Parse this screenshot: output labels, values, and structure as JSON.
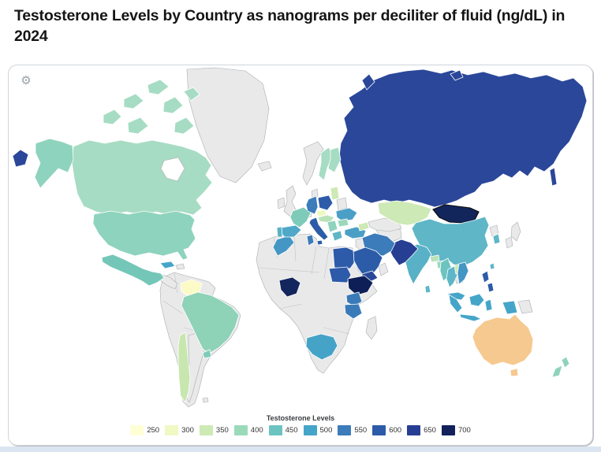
{
  "card": {
    "icons": {
      "settings_glyph": "⚙"
    }
  },
  "footer_strip_color": "#dbe5f1",
  "chart_data": {
    "type": "choropleth",
    "title": "Testosterone Levels by Country as nanograms per deciliter of fluid (ng/dL) in 2024",
    "unit": "ng/dL",
    "legend": {
      "title": "Testosterone Levels",
      "bins": [
        {
          "label": "250",
          "color": "#ffffd6"
        },
        {
          "label": "300",
          "color": "#f0f8c4"
        },
        {
          "label": "350",
          "color": "#cde9b5"
        },
        {
          "label": "400",
          "color": "#9bdab9"
        },
        {
          "label": "450",
          "color": "#6cc4c1"
        },
        {
          "label": "500",
          "color": "#45a5c9"
        },
        {
          "label": "550",
          "color": "#3c7cba"
        },
        {
          "label": "600",
          "color": "#2d5ba9"
        },
        {
          "label": "650",
          "color": "#273f93"
        },
        {
          "label": "700",
          "color": "#12205c"
        }
      ]
    },
    "ocean_color": "#ffffff",
    "no_data_color": "#e9e9e9",
    "highlighted_country": "Mongolia",
    "anomalies": [
      "Australia rendered in orange (#f5c98f), a color outside the legend scale"
    ],
    "countries": [
      {
        "name": "Canada",
        "value": 400,
        "color": "#a6dcc3"
      },
      {
        "name": "United States",
        "value": 400,
        "color": "#8ed3bd"
      },
      {
        "name": "Mexico",
        "value": 450,
        "color": "#74c7b8"
      },
      {
        "name": "Cuba",
        "value": 500,
        "color": "#45a5c9"
      },
      {
        "name": "Venezuela",
        "value": 250,
        "color": "#fcfac6"
      },
      {
        "name": "Brazil",
        "value": 400,
        "color": "#8ed2b8"
      },
      {
        "name": "Uruguay",
        "value": 400,
        "color": "#7fcbb9"
      },
      {
        "name": "Chile",
        "value": 350,
        "color": "#c7e7ae"
      },
      {
        "name": "Sweden",
        "value": 400,
        "color": "#a6dcc3"
      },
      {
        "name": "Finland",
        "value": 400,
        "color": "#a6dcc3"
      },
      {
        "name": "Baltic states",
        "value": 350,
        "color": "#cde9b5"
      },
      {
        "name": "France",
        "value": 400,
        "color": "#7ecbb9"
      },
      {
        "name": "Spain",
        "value": 450,
        "color": "#4fa8c8"
      },
      {
        "name": "Portugal",
        "value": 450,
        "color": "#58b1c6"
      },
      {
        "name": "Germany",
        "value": 550,
        "color": "#3c7cba"
      },
      {
        "name": "Poland",
        "value": 600,
        "color": "#2d5ba9"
      },
      {
        "name": "Czechia",
        "value": 300,
        "color": "#eff8c2"
      },
      {
        "name": "Austria & Hungary",
        "value": 350,
        "color": "#b9e2b8"
      },
      {
        "name": "Italy",
        "value": 600,
        "color": "#2c5ca8"
      },
      {
        "name": "Ukraine",
        "value": 500,
        "color": "#4b9fc6"
      },
      {
        "name": "Romania",
        "value": 400,
        "color": "#9bd8ba"
      },
      {
        "name": "Serbia",
        "value": 400,
        "color": "#8fd3bd"
      },
      {
        "name": "Greece",
        "value": 450,
        "color": "#5fb6c7"
      },
      {
        "name": "Caucasus",
        "value": 350,
        "color": "#cde9b5"
      },
      {
        "name": "Turkey",
        "value": 500,
        "color": "#4b9fc6"
      },
      {
        "name": "Russia",
        "value": 650,
        "color": "#2b4799"
      },
      {
        "name": "Kazakhstan",
        "value": 350,
        "color": "#cde9b5"
      },
      {
        "name": "Mongolia",
        "value": 700,
        "color": "#13265c"
      },
      {
        "name": "China",
        "value": 450,
        "color": "#5fb6c7"
      },
      {
        "name": "South Korea",
        "value": 450,
        "color": "#5fb6c7"
      },
      {
        "name": "Taiwan",
        "value": 450,
        "color": "#5fb6c7"
      },
      {
        "name": "India",
        "value": 450,
        "color": "#58b1c6"
      },
      {
        "name": "Sri Lanka",
        "value": 450,
        "color": "#5fb6c7"
      },
      {
        "name": "Nepal",
        "value": 350,
        "color": "#b9e2b8"
      },
      {
        "name": "Bangladesh",
        "value": 400,
        "color": "#9bd8ba"
      },
      {
        "name": "Pakistan",
        "value": 650,
        "color": "#273f93"
      },
      {
        "name": "Iran",
        "value": 550,
        "color": "#3c7cba"
      },
      {
        "name": "Saudi Arabia",
        "value": 600,
        "color": "#2c5ca8"
      },
      {
        "name": "Yemen",
        "value": 650,
        "color": "#2a4899"
      },
      {
        "name": "Morocco",
        "value": 500,
        "color": "#4496c4"
      },
      {
        "name": "Tunisia",
        "value": 550,
        "color": "#3c7cba"
      },
      {
        "name": "Egypt",
        "value": 600,
        "color": "#2d5ba9"
      },
      {
        "name": "Sudan",
        "value": 600,
        "color": "#2d5ba9"
      },
      {
        "name": "Ethiopia",
        "value": 700,
        "color": "#0e1f57"
      },
      {
        "name": "Nigeria",
        "value": 700,
        "color": "#14265e"
      },
      {
        "name": "Kenya",
        "value": 550,
        "color": "#3a7ab8"
      },
      {
        "name": "Tanzania",
        "value": 550,
        "color": "#3a7ab8"
      },
      {
        "name": "South Africa",
        "value": 500,
        "color": "#46a3c8"
      },
      {
        "name": "Myanmar",
        "value": 450,
        "color": "#6cc4c0"
      },
      {
        "name": "Thailand",
        "value": 450,
        "color": "#5fb6c7"
      },
      {
        "name": "Laos",
        "value": 350,
        "color": "#cde9b5"
      },
      {
        "name": "Vietnam",
        "value": 500,
        "color": "#4496c4"
      },
      {
        "name": "Malaysia",
        "value": 500,
        "color": "#45a5c9"
      },
      {
        "name": "Indonesia",
        "value": 500,
        "color": "#45a5c9"
      },
      {
        "name": "Philippines",
        "value": 600,
        "color": "#2d5ba9"
      },
      {
        "name": "Australia",
        "value": null,
        "color": "#f5c98f"
      },
      {
        "name": "New Zealand",
        "value": 400,
        "color": "#8fd3bd"
      }
    ]
  }
}
